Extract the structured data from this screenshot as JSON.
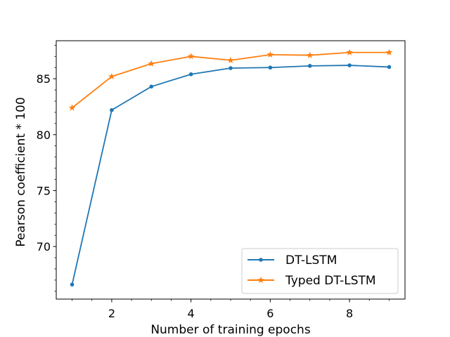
{
  "chart_data": {
    "type": "line",
    "title": "",
    "xlabel": "Number of training epochs",
    "ylabel": "Pearson coefficient * 100",
    "x": [
      1,
      2,
      3,
      4,
      5,
      6,
      7,
      8,
      9
    ],
    "xlim": [
      0.6,
      9.4
    ],
    "ylim": [
      65.3,
      88.4
    ],
    "xticks": [
      2,
      4,
      6,
      8
    ],
    "yticks": [
      70,
      75,
      80,
      85
    ],
    "yminor_step": 1,
    "xminor_step": 0.5,
    "legend_position": "lower-right",
    "series": [
      {
        "name": "DT-LSTM",
        "color": "#1f77b4",
        "marker": "circle",
        "values": [
          66.6,
          82.2,
          84.3,
          85.4,
          85.95,
          86.0,
          86.15,
          86.2,
          86.05
        ]
      },
      {
        "name": "Typed DT-LSTM",
        "color": "#ff7f0e",
        "marker": "star",
        "values": [
          82.4,
          85.2,
          86.35,
          87.0,
          86.65,
          87.15,
          87.1,
          87.35,
          87.35
        ]
      }
    ]
  }
}
